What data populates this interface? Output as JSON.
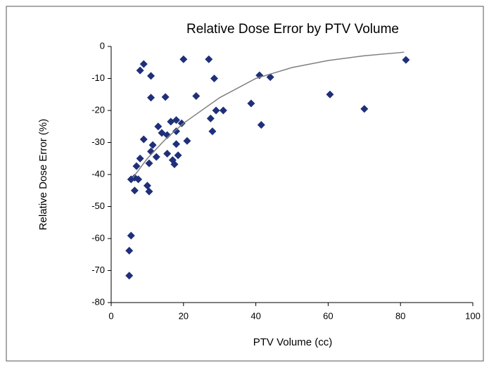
{
  "chart_data": {
    "type": "scatter",
    "title": "Relative Dose Error by PTV Volume",
    "x_label": "PTV Volume (cc)",
    "y_label": "Relative Dose Error (%)",
    "xlim": [
      0,
      100
    ],
    "xticks": [
      0,
      20,
      40,
      60,
      80,
      100
    ],
    "ylim": [
      -80,
      0
    ],
    "yticks": [
      -80,
      -70,
      -60,
      -50,
      -40,
      -30,
      -20,
      -10,
      0
    ],
    "color": "#1f2f7a",
    "x": [
      81.5,
      27,
      20,
      9,
      8,
      11,
      41,
      44,
      28.5,
      60.5,
      70,
      38.7,
      29,
      31,
      27.5,
      28,
      41.5,
      11,
      15,
      23.5,
      16.5,
      18,
      19.5,
      13,
      14,
      15.5,
      18,
      21,
      18,
      9,
      11.5,
      11,
      12.5,
      15.5,
      17,
      18.5,
      17.5,
      8,
      7,
      10.5,
      6.5,
      7.5,
      6.5,
      10,
      10.5,
      5.5,
      5.5,
      5,
      5
    ],
    "values": [
      -4.2,
      -4,
      -4,
      -5.5,
      -7.5,
      -9.2,
      -9,
      -9.6,
      -10,
      -15,
      -19.5,
      -17.8,
      -20,
      -20,
      -22.5,
      -26.5,
      -24.5,
      -16,
      -15.8,
      -15.5,
      -23.5,
      -23,
      -24,
      -25,
      -27,
      -27.7,
      -26.5,
      -29.5,
      -30.5,
      -29,
      -30.8,
      -32.8,
      -34.5,
      -33.5,
      -35.5,
      -34,
      -36.8,
      -35,
      -37.4,
      -36.5,
      -41,
      -41.5,
      -45,
      -43.5,
      -45.3,
      -41.5,
      -59.1,
      -63.8,
      -71.6
    ],
    "trend": {
      "color": "#808080",
      "x": [
        6,
        10,
        15,
        20,
        30,
        40,
        50,
        60,
        70,
        81
      ],
      "values": [
        -41,
        -35,
        -29,
        -24,
        -16,
        -10,
        -6.6,
        -4.4,
        -2.9,
        -1.8
      ]
    }
  }
}
